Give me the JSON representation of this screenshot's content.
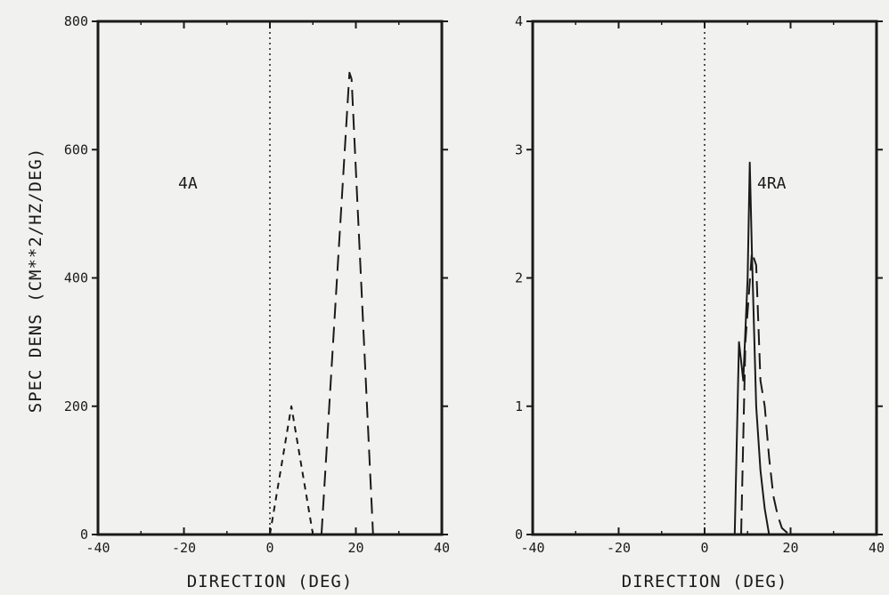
{
  "chart_data": [
    {
      "type": "line",
      "panel_label": "4A",
      "xlabel": "DIRECTION (DEG)",
      "ylabel": "SPEC DENS (CM**2/HZ/DEG)",
      "xlim": [
        -40,
        40
      ],
      "ylim": [
        0,
        800
      ],
      "x_ticks": [
        "-40",
        "-20",
        "0",
        "20",
        "40"
      ],
      "y_ticks": [
        "0",
        "200",
        "400",
        "600",
        "800"
      ],
      "reference_line_x": 0,
      "series": [
        {
          "style": "dashed",
          "x": [
            0,
            5,
            10
          ],
          "y": [
            0,
            200,
            0
          ]
        },
        {
          "style": "longdash",
          "x": [
            12,
            18.5,
            19,
            24
          ],
          "y": [
            0,
            720,
            710,
            0
          ]
        }
      ]
    },
    {
      "type": "line",
      "panel_label": "4RA",
      "xlabel": "DIRECTION (DEG)",
      "ylabel": "",
      "xlim": [
        -40,
        40
      ],
      "ylim": [
        0,
        4
      ],
      "x_ticks": [
        "-40",
        "-20",
        "0",
        "20",
        "40"
      ],
      "y_ticks": [
        "0",
        "1",
        "2",
        "3",
        "4"
      ],
      "reference_line_x": 0,
      "series": [
        {
          "style": "solid",
          "x": [
            7,
            8,
            9,
            10,
            10.5,
            11,
            12,
            13,
            14,
            15
          ],
          "y": [
            0,
            1.5,
            1.2,
            2.0,
            2.9,
            2.2,
            1.0,
            0.5,
            0.2,
            0
          ]
        },
        {
          "style": "longdash",
          "x": [
            8.5,
            9.5,
            11,
            12,
            13,
            14,
            15,
            16,
            17,
            18,
            19,
            20
          ],
          "y": [
            0,
            1.5,
            2.2,
            2.1,
            1.2,
            1.0,
            0.6,
            0.3,
            0.15,
            0.05,
            0.02,
            0
          ]
        }
      ]
    }
  ]
}
